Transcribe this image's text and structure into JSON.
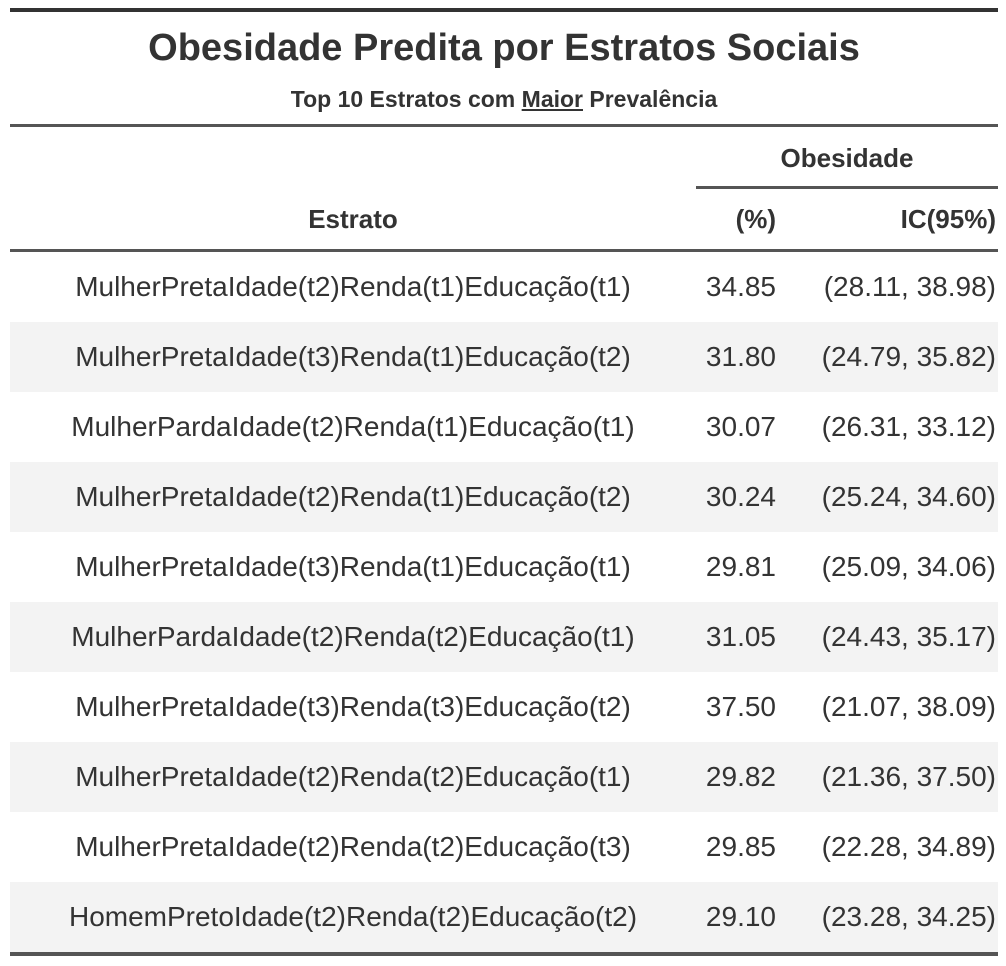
{
  "table": {
    "title": "Obesidade Predita por Estratos Sociais",
    "subtitle_pre": "Top 10 Estratos com ",
    "subtitle_emph": "Maior",
    "subtitle_post": " Prevalência",
    "spanner": "Obesidade",
    "columns": {
      "estrato": "Estrato",
      "pct": "(%)",
      "ic": "IC(95%)"
    },
    "rows": [
      {
        "estrato": "MulherPretaIdade(t2)Renda(t1)Educação(t1)",
        "pct": "34.85",
        "ic": "(28.11, 38.98)"
      },
      {
        "estrato": "MulherPretaIdade(t3)Renda(t1)Educação(t2)",
        "pct": "31.80",
        "ic": "(24.79, 35.82)"
      },
      {
        "estrato": "MulherPardaIdade(t2)Renda(t1)Educação(t1)",
        "pct": "30.07",
        "ic": "(26.31, 33.12)"
      },
      {
        "estrato": "MulherPretaIdade(t2)Renda(t1)Educação(t2)",
        "pct": "30.24",
        "ic": "(25.24, 34.60)"
      },
      {
        "estrato": "MulherPretaIdade(t3)Renda(t1)Educação(t1)",
        "pct": "29.81",
        "ic": "(25.09, 34.06)"
      },
      {
        "estrato": "MulherPardaIdade(t2)Renda(t2)Educação(t1)",
        "pct": "31.05",
        "ic": "(24.43, 35.17)"
      },
      {
        "estrato": "MulherPretaIdade(t3)Renda(t3)Educação(t2)",
        "pct": "37.50",
        "ic": "(21.07, 38.09)"
      },
      {
        "estrato": "MulherPretaIdade(t2)Renda(t2)Educação(t1)",
        "pct": "29.82",
        "ic": "(21.36, 37.50)"
      },
      {
        "estrato": "MulherPretaIdade(t2)Renda(t2)Educação(t3)",
        "pct": "29.85",
        "ic": "(22.28, 34.89)"
      },
      {
        "estrato": "HomemPretoIdade(t2)Renda(t2)Educação(t2)",
        "pct": "29.10",
        "ic": "(23.28, 34.25)"
      }
    ]
  }
}
